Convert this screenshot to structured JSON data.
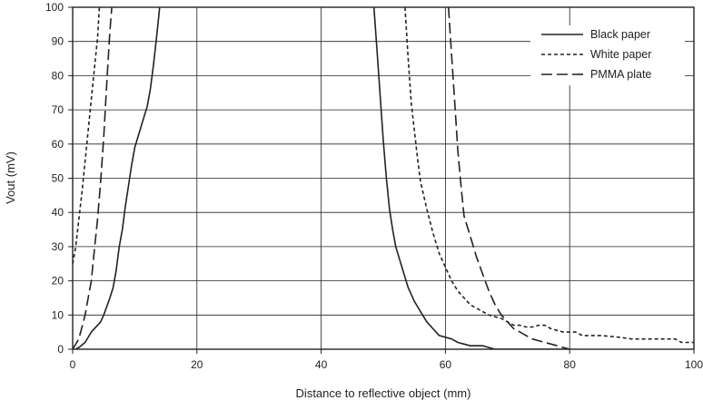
{
  "chart_data": {
    "type": "line",
    "title": "",
    "xlabel": "Distance to reflective object (mm)",
    "ylabel": "Vout (mV)",
    "xlim": [
      0,
      100
    ],
    "ylim": [
      0,
      100
    ],
    "x_ticks": [
      0,
      20,
      40,
      60,
      80,
      100
    ],
    "y_ticks": [
      0,
      10,
      20,
      30,
      40,
      50,
      60,
      70,
      80,
      90,
      100
    ],
    "grid": true,
    "legend_position": "top-right",
    "series": [
      {
        "name": "Black paper",
        "style": "solid",
        "color": "#222222",
        "segments": [
          [
            [
              0.5,
              0
            ],
            [
              1,
              0.5
            ],
            [
              2,
              2
            ],
            [
              3,
              5
            ],
            [
              4,
              7
            ],
            [
              4.5,
              8
            ],
            [
              5,
              10
            ],
            [
              6,
              15
            ],
            [
              6.5,
              18
            ],
            [
              7,
              23
            ],
            [
              7.5,
              30
            ],
            [
              8,
              35
            ],
            [
              8.5,
              42
            ],
            [
              9,
              48
            ],
            [
              9.5,
              54
            ],
            [
              10,
              59
            ],
            [
              11,
              65
            ],
            [
              12,
              71
            ],
            [
              12.5,
              76
            ],
            [
              13,
              83
            ],
            [
              13.5,
              91
            ],
            [
              14,
              100
            ]
          ],
          [
            [
              48.5,
              100
            ],
            [
              49,
              87
            ],
            [
              49.5,
              74
            ],
            [
              50,
              61
            ],
            [
              50.5,
              50
            ],
            [
              51,
              41
            ],
            [
              51.5,
              35
            ],
            [
              52,
              30
            ],
            [
              53,
              24
            ],
            [
              54,
              18
            ],
            [
              55,
              14
            ],
            [
              56,
              11
            ],
            [
              57,
              8
            ],
            [
              58,
              6
            ],
            [
              59,
              4
            ],
            [
              60,
              3.5
            ],
            [
              61,
              3
            ],
            [
              62,
              2
            ],
            [
              63,
              1.5
            ],
            [
              64,
              1
            ],
            [
              65,
              1
            ],
            [
              66,
              1
            ],
            [
              67,
              0.5
            ],
            [
              68,
              0
            ],
            [
              80,
              0
            ]
          ]
        ]
      },
      {
        "name": "White paper",
        "style": "dotted",
        "color": "#222222",
        "segments": [
          [
            [
              0,
              25
            ],
            [
              0.5,
              30
            ],
            [
              1,
              38
            ],
            [
              1.5,
              46
            ],
            [
              2,
              55
            ],
            [
              2.5,
              64
            ],
            [
              3,
              73
            ],
            [
              3.5,
              82
            ],
            [
              4,
              91
            ],
            [
              4.3,
              100
            ]
          ],
          [
            [
              53.5,
              100
            ],
            [
              54,
              85
            ],
            [
              54.5,
              72
            ],
            [
              55,
              64
            ],
            [
              55.5,
              56
            ],
            [
              56,
              49
            ],
            [
              57,
              41
            ],
            [
              58,
              34
            ],
            [
              59,
              28
            ],
            [
              60,
              24
            ],
            [
              61,
              20
            ],
            [
              62,
              17
            ],
            [
              63,
              15
            ],
            [
              64,
              13
            ],
            [
              65,
              12
            ],
            [
              66,
              11
            ],
            [
              67,
              10
            ],
            [
              68,
              9.5
            ],
            [
              69,
              9
            ],
            [
              70,
              8
            ],
            [
              71,
              7
            ],
            [
              72,
              7
            ],
            [
              73,
              6.5
            ],
            [
              74,
              6.5
            ],
            [
              75,
              7
            ],
            [
              76,
              7
            ],
            [
              77,
              6
            ],
            [
              78,
              5.5
            ],
            [
              79,
              5
            ],
            [
              80,
              5
            ],
            [
              81,
              5
            ],
            [
              82,
              4
            ],
            [
              85,
              4
            ],
            [
              88,
              3.5
            ],
            [
              90,
              3
            ],
            [
              94,
              3
            ],
            [
              97,
              3
            ],
            [
              98,
              2
            ],
            [
              100,
              2
            ]
          ]
        ]
      },
      {
        "name": "PMMA plate",
        "style": "dashed",
        "color": "#222222",
        "segments": [
          [
            [
              0,
              0
            ],
            [
              1,
              3
            ],
            [
              2,
              10
            ],
            [
              2.5,
              15
            ],
            [
              3,
              20
            ],
            [
              3.5,
              29
            ],
            [
              4,
              38
            ],
            [
              4.5,
              49
            ],
            [
              5,
              62
            ],
            [
              5.5,
              78
            ],
            [
              6,
              93
            ],
            [
              6.3,
              100
            ]
          ],
          [
            [
              60.5,
              100
            ],
            [
              61,
              86
            ],
            [
              61.5,
              72
            ],
            [
              62,
              58
            ],
            [
              62.5,
              48
            ],
            [
              63,
              39
            ],
            [
              64,
              33
            ],
            [
              65,
              27
            ],
            [
              66,
              22
            ],
            [
              67,
              17
            ],
            [
              68,
              13
            ],
            [
              69,
              10
            ],
            [
              70,
              8
            ],
            [
              71,
              6
            ],
            [
              72,
              5
            ],
            [
              73,
              4
            ],
            [
              74,
              3
            ],
            [
              75,
              2.5
            ],
            [
              76,
              2
            ],
            [
              77,
              1.5
            ],
            [
              78,
              1
            ],
            [
              79,
              0.5
            ],
            [
              80,
              0
            ]
          ]
        ]
      }
    ]
  }
}
